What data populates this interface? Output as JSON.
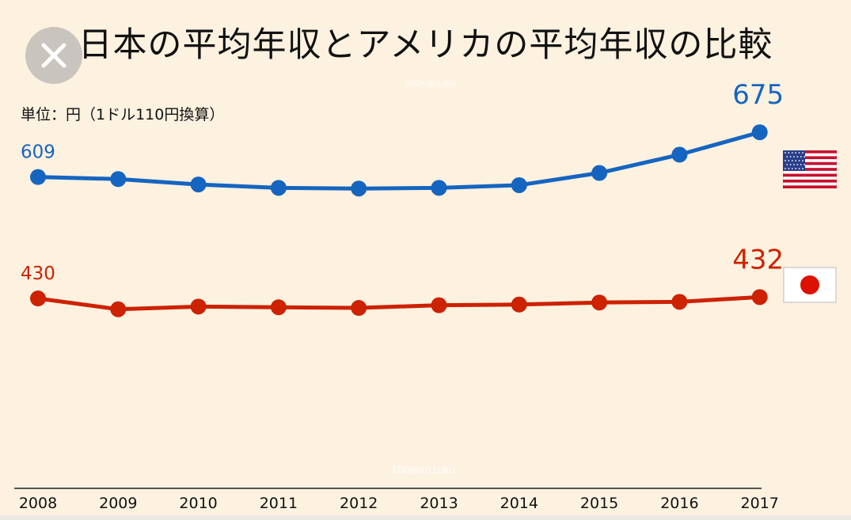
{
  "title": "日本の平均年収とアメリカの平均年収の比較",
  "unit_note": "単位：円（1ドル110円換算）",
  "watermark": "100man1oku",
  "close_icon": "close-icon",
  "flags": {
    "us": "us-flag-icon",
    "jp": "japan-flag-icon"
  },
  "colors": {
    "background": "#fdf1e0",
    "us": "#1565c0",
    "jp": "#cc2200",
    "axis": "#222222"
  },
  "chart_data": {
    "type": "line",
    "title": "日本の平均年収とアメリカの平均年収の比較",
    "xlabel": "",
    "ylabel": "",
    "x": [
      "2008",
      "2009",
      "2010",
      "2011",
      "2012",
      "2013",
      "2014",
      "2015",
      "2016",
      "2017"
    ],
    "ylim": [
      150,
      800
    ],
    "grid": false,
    "series": [
      {
        "key": "us",
        "values": [
          609,
          606,
          598,
          593,
          592,
          593,
          597,
          615,
          642,
          675
        ],
        "labels": {
          "first": "609",
          "last": "675"
        }
      },
      {
        "key": "jp",
        "values": [
          430,
          414,
          418,
          417,
          416,
          420,
          421,
          424,
          425,
          432
        ],
        "labels": {
          "first": "430",
          "last": "432"
        }
      }
    ]
  }
}
